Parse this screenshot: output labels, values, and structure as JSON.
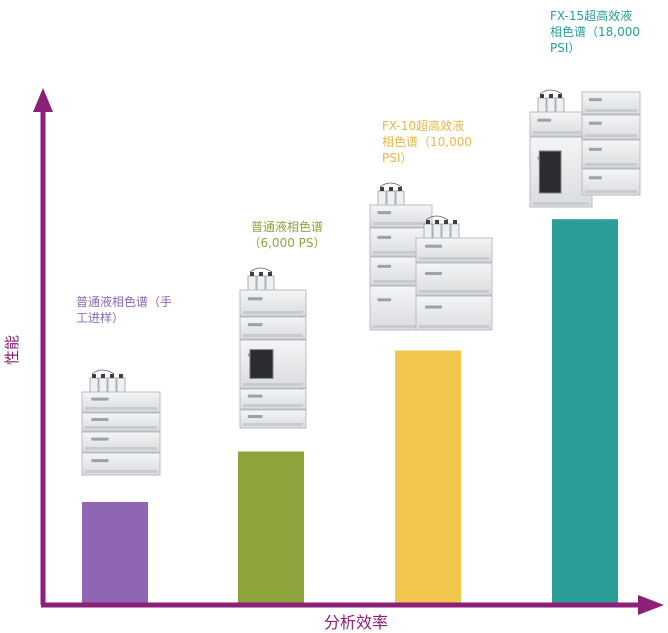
{
  "chart_data": {
    "type": "bar",
    "xlabel": "分析效率",
    "ylabel": "性能",
    "categories": [
      "普通液相色谱（手工进样）",
      "普通液相色谱（6,000 PS）",
      "FX-10超高效液相色谱（10,000 PSI）",
      "FX-15超高效液相色谱（18,000 PSI）"
    ],
    "values": [
      1.0,
      1.5,
      2.5,
      3.8
    ],
    "ylim": [
      0,
      5
    ],
    "grid": false,
    "legend": "none"
  },
  "labels": [
    {
      "line1": "普通液相色谱（手",
      "line2": "工进样）",
      "line3": ""
    },
    {
      "line1": "普通液相色谱",
      "line2": "（6,000 PS）",
      "line3": ""
    },
    {
      "line1": "FX-10超高效液",
      "line2": "相色谱（10,000",
      "line3": "PSI）"
    },
    {
      "line1": "FX-15超高效液",
      "line2": "相色谱（18,000",
      "line3": "PSI）"
    }
  ],
  "colors": {
    "axis": "#8B1F7A",
    "bars": [
      "#8E66B3",
      "#8DA33C",
      "#F0C64C",
      "#2A9E97"
    ],
    "labels": [
      "#8E66B3",
      "#8DA33C",
      "#E8B84A",
      "#2A9E97"
    ]
  },
  "icons": [
    "hplc-instrument-icon",
    "hplc-instrument-icon",
    "hplc-instrument-icon",
    "hplc-instrument-icon"
  ]
}
